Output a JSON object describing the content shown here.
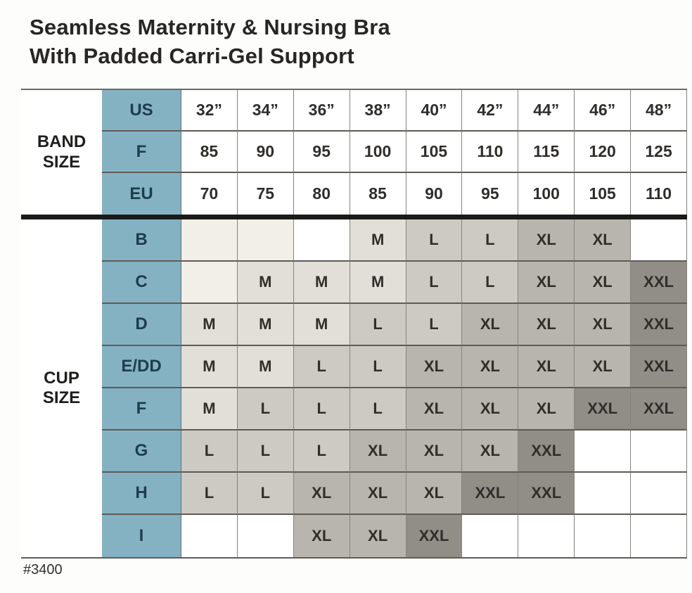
{
  "title_line1": "Seamless Maternity & Nursing Bra",
  "title_line2": "With Padded Carri-Gel Support",
  "footnote": "#3400",
  "band_label": "BAND SIZE",
  "cup_label": "CUP SIZE",
  "colors": {
    "header_blue": "#85b2c3",
    "header_text": "#1d3d4c",
    "cell_text": "#302e2b",
    "label_text": "#1f1e1c",
    "fill_cream": "#f1efe8",
    "fill_white": "#ffffff",
    "fill_M": "#e2dfd8",
    "fill_L": "#cdcac3",
    "fill_XL": "#b8b5ae",
    "fill_XXL": "#918e88",
    "section_divider": "#1a1a19"
  },
  "chart_data": {
    "type": "table",
    "title": "Seamless Maternity & Nursing Bra With Padded Carri-Gel Support",
    "product_code": "#3400",
    "band_rows": [
      {
        "key": "US",
        "values": [
          "32”",
          "34”",
          "36”",
          "38”",
          "40”",
          "42”",
          "44”",
          "46”",
          "48”"
        ]
      },
      {
        "key": "F",
        "values": [
          "85",
          "90",
          "95",
          "100",
          "105",
          "110",
          "115",
          "120",
          "125"
        ]
      },
      {
        "key": "EU",
        "values": [
          "70",
          "75",
          "80",
          "85",
          "90",
          "95",
          "100",
          "105",
          "110"
        ]
      }
    ],
    "cup_rows": [
      {
        "key": "B",
        "values": [
          "",
          "",
          "",
          "M",
          "L",
          "L",
          "XL",
          "XL",
          ""
        ],
        "fills": [
          "cream",
          "cream",
          "white",
          "M",
          "L",
          "L",
          "XL",
          "XL",
          "white"
        ]
      },
      {
        "key": "C",
        "values": [
          "",
          "M",
          "M",
          "M",
          "L",
          "L",
          "XL",
          "XL",
          "XXL"
        ],
        "fills": [
          "cream",
          "M",
          "M",
          "M",
          "L",
          "L",
          "XL",
          "XL",
          "XXL"
        ]
      },
      {
        "key": "D",
        "values": [
          "M",
          "M",
          "M",
          "L",
          "L",
          "XL",
          "XL",
          "XL",
          "XXL"
        ],
        "fills": [
          "M",
          "M",
          "M",
          "L",
          "L",
          "XL",
          "XL",
          "XL",
          "XXL"
        ]
      },
      {
        "key": "E/DD",
        "values": [
          "M",
          "M",
          "L",
          "L",
          "XL",
          "XL",
          "XL",
          "XL",
          "XXL"
        ],
        "fills": [
          "M",
          "M",
          "L",
          "L",
          "XL",
          "XL",
          "XL",
          "XL",
          "XXL"
        ]
      },
      {
        "key": "F",
        "values": [
          "M",
          "L",
          "L",
          "L",
          "XL",
          "XL",
          "XL",
          "XXL",
          "XXL"
        ],
        "fills": [
          "M",
          "L",
          "L",
          "L",
          "XL",
          "XL",
          "XL",
          "XXL",
          "XXL"
        ]
      },
      {
        "key": "G",
        "values": [
          "L",
          "L",
          "L",
          "XL",
          "XL",
          "XL",
          "XXL",
          "",
          ""
        ],
        "fills": [
          "L",
          "L",
          "L",
          "XL",
          "XL",
          "XL",
          "XXL",
          "white",
          "white"
        ]
      },
      {
        "key": "H",
        "values": [
          "L",
          "L",
          "XL",
          "XL",
          "XL",
          "XXL",
          "XXL",
          "",
          ""
        ],
        "fills": [
          "L",
          "L",
          "XL",
          "XL",
          "XL",
          "XXL",
          "XXL",
          "white",
          "white"
        ]
      },
      {
        "key": "I",
        "values": [
          "",
          "",
          "XL",
          "XL",
          "XXL",
          "",
          "",
          "",
          ""
        ],
        "fills": [
          "white",
          "white",
          "XL",
          "XL",
          "XXL",
          "white",
          "white",
          "white",
          "white"
        ]
      }
    ]
  }
}
